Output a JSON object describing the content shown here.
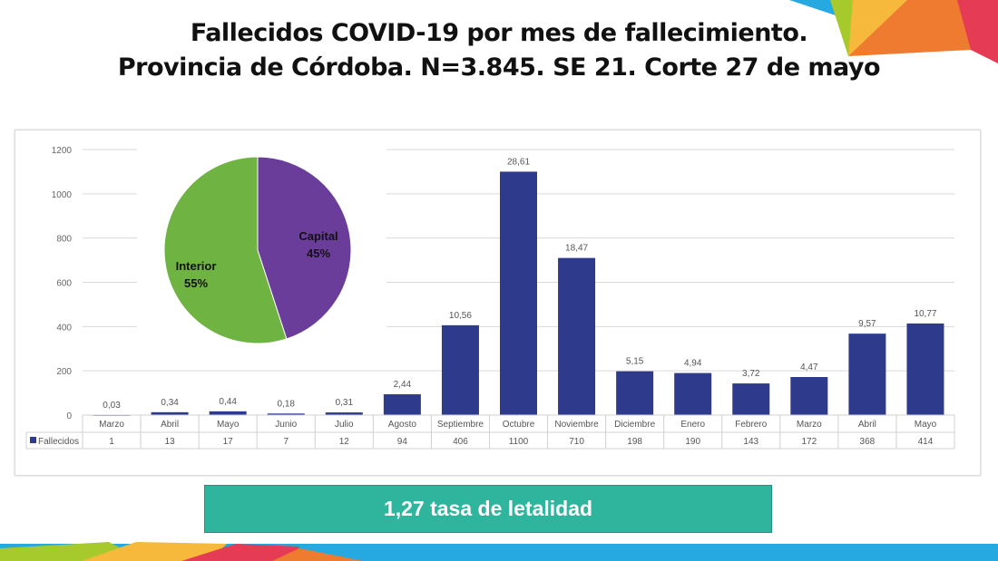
{
  "title": {
    "line1": "Fallecidos COVID-19 por mes de fallecimiento.",
    "line2": "Provincia de Córdoba. N=3.845. SE 21. Corte 27 de mayo"
  },
  "banner": "1,27 tasa de letalidad",
  "colors": {
    "bar": "#2e3a8c",
    "capital": "#6a3d9a",
    "interior": "#6fb343",
    "banner": "#2fb59d"
  },
  "chart_data": [
    {
      "type": "bar",
      "title": "",
      "ylim": [
        0,
        1200
      ],
      "yticks": [
        0,
        200,
        400,
        600,
        800,
        1000,
        1200
      ],
      "grid": true,
      "categories": [
        "Marzo",
        "Abril",
        "Mayo",
        "Junio",
        "Julio",
        "Agosto",
        "Septiembre",
        "Octubre",
        "Noviembre",
        "Diciembre",
        "Enero",
        "Febrero",
        "Marzo",
        "Abril",
        "Mayo"
      ],
      "series": [
        {
          "name": "Fallecidos",
          "values": [
            1,
            13,
            17,
            7,
            12,
            94,
            406,
            1100,
            710,
            198,
            190,
            143,
            172,
            368,
            414
          ]
        }
      ],
      "data_labels": [
        "0,03",
        "0,34",
        "0,44",
        "0,18",
        "0,31",
        "2,44",
        "10,56",
        "28,61",
        "18,47",
        "5,15",
        "4,94",
        "3,72",
        "4,47",
        "9,57",
        "10,77"
      ],
      "data_table": true
    },
    {
      "type": "pie",
      "slices": [
        {
          "label": "Capital",
          "value": 45,
          "text": "45%"
        },
        {
          "label": "Interior",
          "value": 55,
          "text": "55%"
        }
      ]
    }
  ]
}
